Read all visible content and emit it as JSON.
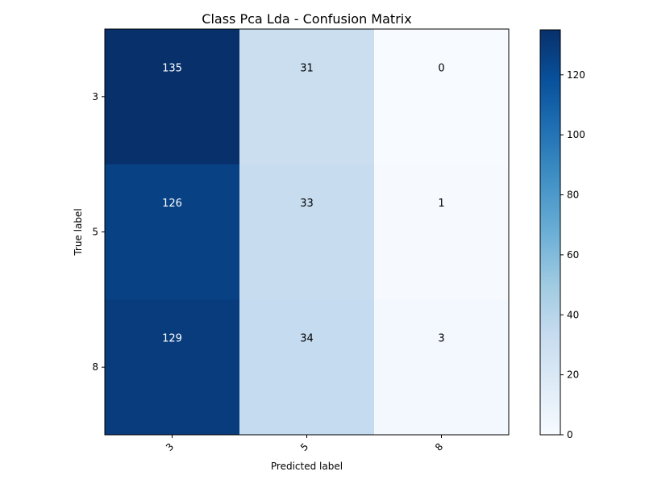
{
  "chart_data": {
    "type": "heatmap",
    "title": "Class Pca Lda - Confusion Matrix",
    "xlabel": "Predicted label",
    "ylabel": "True label",
    "x_categories": [
      "3",
      "5",
      "8"
    ],
    "y_categories": [
      "3",
      "5",
      "8"
    ],
    "values": [
      [
        135,
        31,
        0
      ],
      [
        126,
        33,
        1
      ],
      [
        129,
        34,
        3
      ]
    ],
    "colorbar": {
      "min": 0,
      "max": 135,
      "ticks": [
        0,
        20,
        40,
        60,
        80,
        100,
        120
      ]
    },
    "colormap": "Blues",
    "text_color_dark": "#000000",
    "text_color_light": "#ffffff"
  }
}
